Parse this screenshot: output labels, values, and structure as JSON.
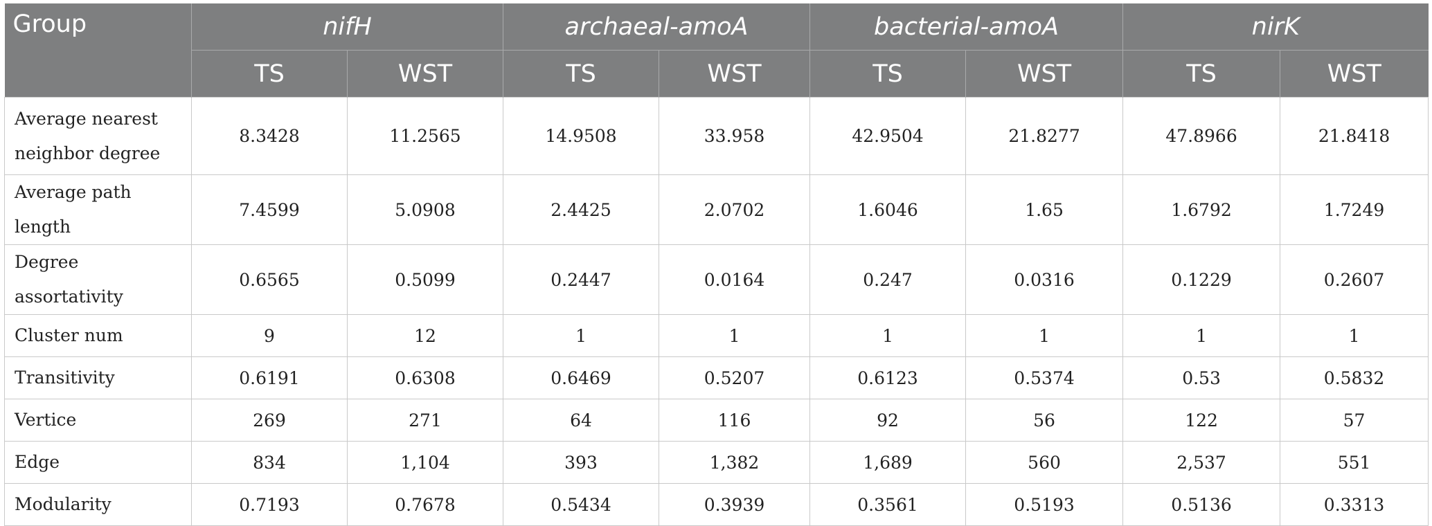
{
  "header": {
    "group_label": "Group",
    "genes": [
      "nifH",
      "archaeal-amoA",
      "bacterial-amoA",
      "nirK"
    ],
    "subcolumns": [
      "TS",
      "WST",
      "TS",
      "WST",
      "TS",
      "WST",
      "TS",
      "WST"
    ]
  },
  "rows": [
    {
      "label": "Average nearest neighbor degree",
      "values": [
        "8.3428",
        "11.2565",
        "14.9508",
        "33.958",
        "42.9504",
        "21.8277",
        "47.8966",
        "21.8418"
      ]
    },
    {
      "label": "Average path length",
      "values": [
        "7.4599",
        "5.0908",
        "2.4425",
        "2.0702",
        "1.6046",
        "1.65",
        "1.6792",
        "1.7249"
      ]
    },
    {
      "label": "Degree assortativity",
      "values": [
        "0.6565",
        "0.5099",
        "0.2447",
        "0.0164",
        "0.247",
        "0.0316",
        "0.1229",
        "0.2607"
      ]
    },
    {
      "label": "Cluster num",
      "values": [
        "9",
        "12",
        "1",
        "1",
        "1",
        "1",
        "1",
        "1"
      ]
    },
    {
      "label": "Transitivity",
      "values": [
        "0.6191",
        "0.6308",
        "0.6469",
        "0.5207",
        "0.6123",
        "0.5374",
        "0.53",
        "0.5832"
      ]
    },
    {
      "label": "Vertice",
      "values": [
        "269",
        "271",
        "64",
        "116",
        "92",
        "56",
        "122",
        "57"
      ]
    },
    {
      "label": "Edge",
      "values": [
        "834",
        "1,104",
        "393",
        "1,382",
        "1,689",
        "560",
        "2,537",
        "551"
      ]
    },
    {
      "label": "Modularity",
      "values": [
        "0.7193",
        "0.7678",
        "0.5434",
        "0.3939",
        "0.3561",
        "0.5193",
        "0.5136",
        "0.3313"
      ]
    }
  ]
}
